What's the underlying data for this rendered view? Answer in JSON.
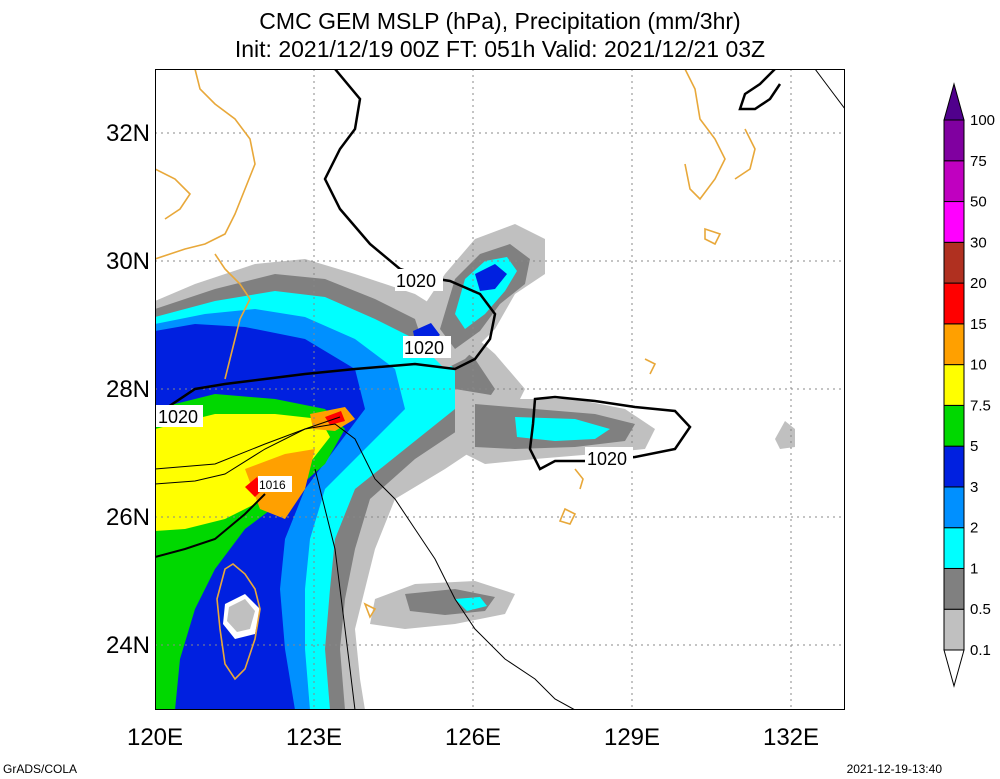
{
  "title": {
    "line1": "CMC GEM MSLP (hPa), Precipitation (mm/3hr)",
    "line2": "Init: 2021/12/19 00Z  FT: 051h  Valid: 2021/12/21 03Z"
  },
  "map": {
    "lon_range": [
      120,
      133
    ],
    "lat_range": [
      23,
      33
    ],
    "lon_ticks": [
      "120E",
      "123E",
      "126E",
      "129E",
      "132E"
    ],
    "lat_ticks": [
      "32N",
      "30N",
      "28N",
      "26N",
      "24N"
    ],
    "coast_color": "#e8a83a",
    "border_color": "#000000",
    "isobar_labels": [
      "1020",
      "1020",
      "1020",
      "1020",
      "1016"
    ]
  },
  "legend": {
    "levels": [
      "0.1",
      "0.5",
      "1",
      "2",
      "3",
      "5",
      "7.5",
      "10",
      "15",
      "20",
      "30",
      "50",
      "75",
      "100"
    ],
    "colors": [
      "#ffffff",
      "#c0c0c0",
      "#808080",
      "#00ffff",
      "#0090ff",
      "#0020e0",
      "#00d800",
      "#ffff00",
      "#ffa000",
      "#ff0000",
      "#b03020",
      "#ff00ff",
      "#c000c0",
      "#8000a0",
      "#50008c"
    ]
  },
  "footer": {
    "left": "GrADS/COLA",
    "right": "2021-12-19-13:40"
  }
}
